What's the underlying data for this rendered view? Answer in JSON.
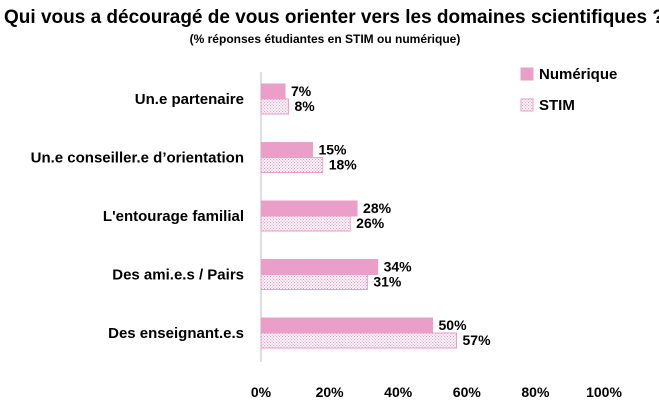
{
  "chart_data": {
    "type": "bar",
    "orientation": "horizontal",
    "title": "Qui vous a découragé de vous orienter vers les domaines scientifiques ?",
    "subtitle": "(% réponses étudiantes en STIM ou numérique)",
    "categories": [
      "Un.e partenaire",
      "Un.e conseiller.e d’orientation",
      "L'entourage familial",
      "Des ami.e.s / Pairs",
      "Des enseignant.e.s"
    ],
    "series": [
      {
        "name": "Numérique",
        "values": [
          7,
          15,
          28,
          34,
          50
        ],
        "labels": [
          "7%",
          "15%",
          "28%",
          "34%",
          "50%"
        ],
        "color": "#e99fc8",
        "pattern": "solid"
      },
      {
        "name": "STIM",
        "values": [
          8,
          18,
          26,
          31,
          57
        ],
        "labels": [
          "8%",
          "18%",
          "26%",
          "31%",
          "57%"
        ],
        "color": "#e99fc8",
        "pattern": "dotted"
      }
    ],
    "xlim": [
      0,
      100
    ],
    "xticks": [
      "0%",
      "20%",
      "40%",
      "60%",
      "80%",
      "100%"
    ],
    "xtick_values": [
      0,
      20,
      40,
      60,
      80,
      100
    ],
    "grid": false,
    "legend_position": "top-right"
  }
}
